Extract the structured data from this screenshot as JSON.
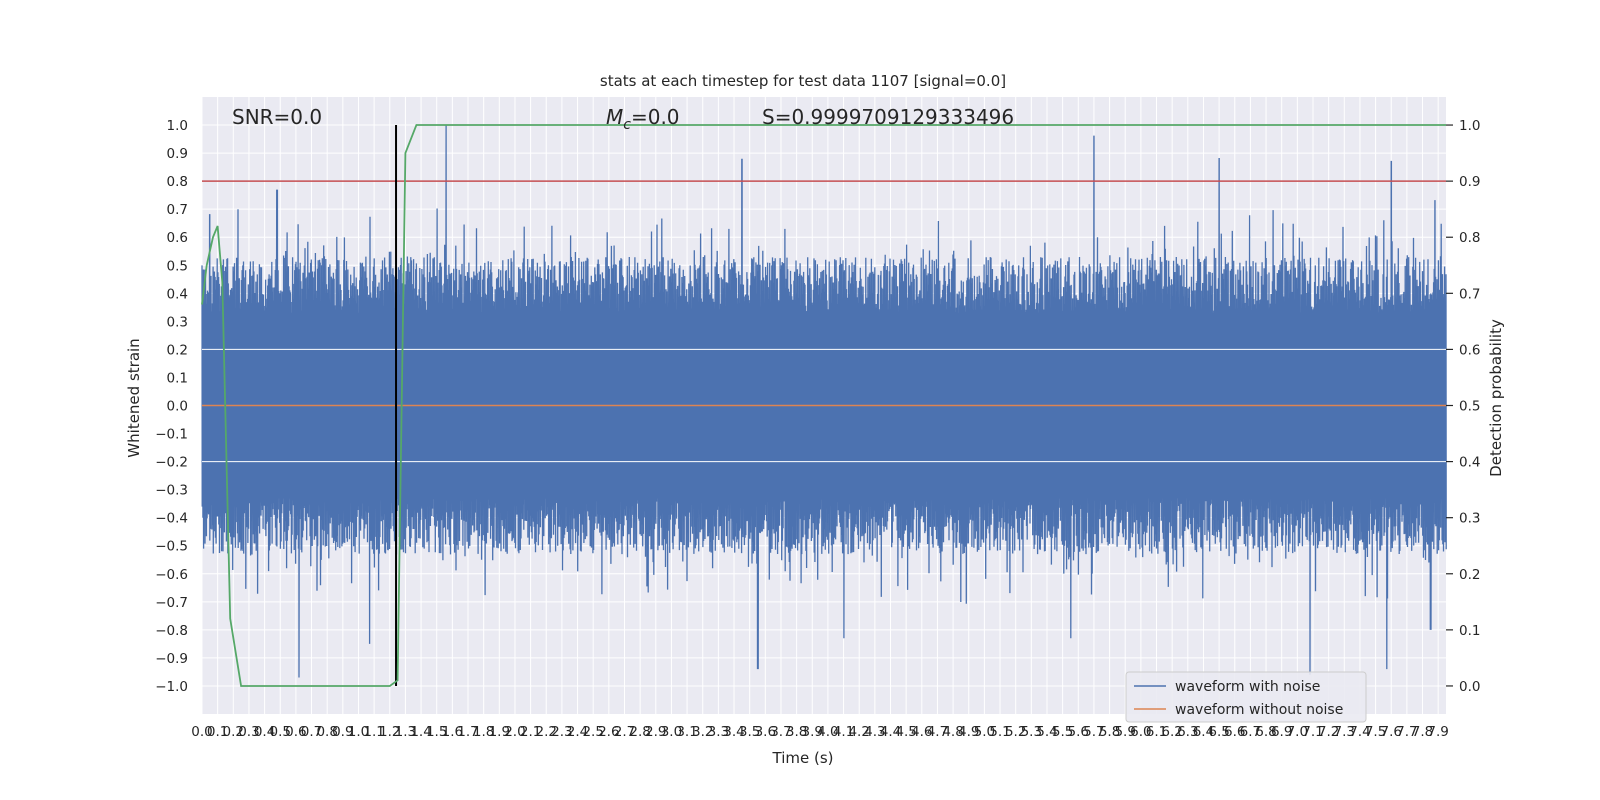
{
  "chart_data": {
    "type": "line",
    "title": "stats at each timestep for test data 1107 [signal=0.0]",
    "xlabel": "Time (s)",
    "ylabel": "Whitened strain",
    "y2label": "Detection probability",
    "xlim": [
      0.0,
      7.95
    ],
    "ylim": [
      -1.1,
      1.1
    ],
    "y2lim": [
      -0.05,
      1.05
    ],
    "x_ticks": [
      0.0,
      0.1,
      0.2,
      0.3,
      0.4,
      0.5,
      0.6,
      0.7,
      0.8,
      0.9,
      1.0,
      1.1,
      1.2,
      1.3,
      1.4,
      1.5,
      1.6,
      1.7,
      1.8,
      1.9,
      2.0,
      2.1,
      2.2,
      2.3,
      2.4,
      2.5,
      2.6,
      2.7,
      2.8,
      2.9,
      3.0,
      3.1,
      3.2,
      3.3,
      3.4,
      3.5,
      3.6,
      3.7,
      3.8,
      3.9,
      4.0,
      4.1,
      4.2,
      4.3,
      4.4,
      4.5,
      4.6,
      4.7,
      4.8,
      4.9,
      5.0,
      5.1,
      5.2,
      5.3,
      5.4,
      5.5,
      5.6,
      5.7,
      5.8,
      5.9,
      6.0,
      6.1,
      6.2,
      6.3,
      6.4,
      6.5,
      6.6,
      6.7,
      6.8,
      6.9,
      7.0,
      7.1,
      7.2,
      7.3,
      7.4,
      7.5,
      7.6,
      7.7,
      7.8,
      7.9
    ],
    "y_ticks": [
      -1.0,
      -0.9,
      -0.8,
      -0.7,
      -0.6,
      -0.5,
      -0.4,
      -0.3,
      -0.2,
      -0.1,
      0.0,
      0.1,
      0.2,
      0.3,
      0.4,
      0.5,
      0.6,
      0.7,
      0.8,
      0.9,
      1.0
    ],
    "y2_ticks": [
      0.0,
      0.1,
      0.2,
      0.3,
      0.4,
      0.5,
      0.6,
      0.7,
      0.8,
      0.9,
      1.0
    ],
    "grid": true,
    "legend_position": "lower-right",
    "annotations": {
      "snr": "SNR=0.0",
      "mc": "=0.0",
      "mc_symbol": "M",
      "mc_subscript": "c",
      "s": "S=0.9999709129333496"
    },
    "series": [
      {
        "name": "waveform with noise",
        "color": "#4c72b0",
        "axis": "left",
        "description_values": "dense noise, typical envelope about +/-0.45",
        "peaks_max": [
          [
            0.05,
            0.68
          ],
          [
            0.23,
            0.7
          ],
          [
            0.48,
            0.77
          ],
          [
            1.56,
            1.0
          ],
          [
            3.45,
            0.88
          ],
          [
            5.7,
            0.96
          ],
          [
            6.5,
            0.88
          ],
          [
            7.6,
            0.87
          ],
          [
            7.88,
            0.73
          ]
        ],
        "peaks_min": [
          [
            0.62,
            -0.97
          ],
          [
            1.07,
            -0.85
          ],
          [
            3.55,
            -0.94
          ],
          [
            4.1,
            -0.83
          ],
          [
            5.55,
            -0.83
          ],
          [
            7.08,
            -0.96
          ],
          [
            7.57,
            -0.94
          ],
          [
            7.85,
            -0.8
          ]
        ]
      },
      {
        "name": "waveform without noise",
        "color": "#dd8452",
        "axis": "left",
        "x": [
          0.0,
          7.95
        ],
        "y": [
          0.0,
          0.0
        ]
      },
      {
        "name": "",
        "color": "#55a868",
        "axis": "right",
        "x": [
          0.0,
          0.03,
          0.07,
          0.1,
          0.13,
          0.18,
          0.25,
          0.3,
          0.6,
          1.0,
          1.2,
          1.25,
          1.3,
          1.37,
          1.5,
          3.0,
          5.0,
          7.95
        ],
        "y": [
          0.68,
          0.75,
          0.8,
          0.82,
          0.72,
          0.12,
          0.0,
          0.0,
          0.0,
          0.0,
          0.0,
          0.01,
          0.95,
          1.0,
          1.0,
          1.0,
          1.0,
          1.0
        ]
      }
    ],
    "threshold_line": {
      "y2": 0.9,
      "color": "#c44e52"
    },
    "vertical_line": {
      "x": 1.24,
      "color": "#000000"
    }
  }
}
